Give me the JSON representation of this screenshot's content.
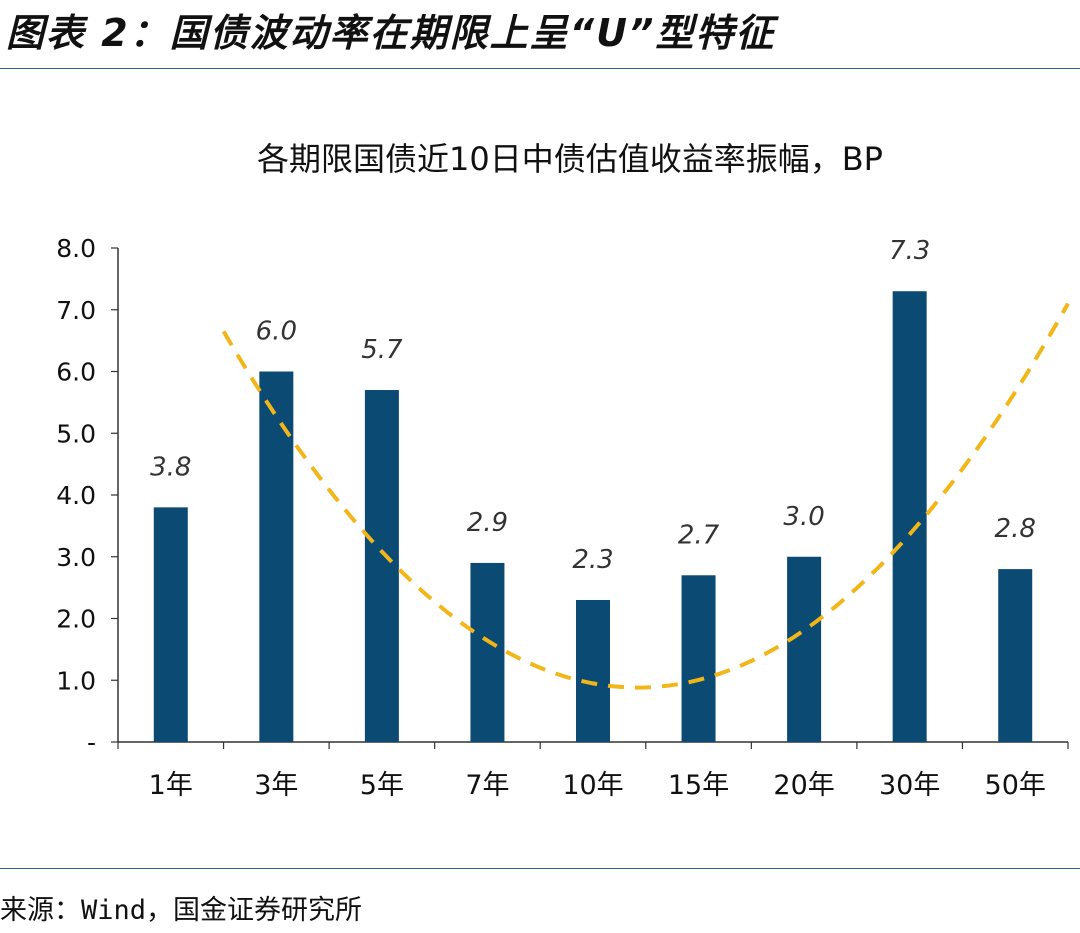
{
  "figure": {
    "title": "图表 2：国债波动率在期限上呈“U”型特征",
    "source": "来源：Wind，国金证券研究所"
  },
  "chart_data": {
    "type": "bar",
    "title": "各期限国债近10日中债估值收益率振幅，BP",
    "categories": [
      "1年",
      "3年",
      "5年",
      "7年",
      "10年",
      "15年",
      "20年",
      "30年",
      "50年"
    ],
    "values": [
      3.8,
      6.0,
      5.7,
      2.9,
      2.3,
      2.7,
      3.0,
      7.3,
      2.8
    ],
    "data_labels": [
      "3.8",
      "6.0",
      "5.7",
      "2.9",
      "2.3",
      "2.7",
      "3.0",
      "7.3",
      "2.8"
    ],
    "ylim": [
      0,
      8
    ],
    "yticks": [
      {
        "value": 0,
        "label": "-"
      },
      {
        "value": 1,
        "label": "1.0"
      },
      {
        "value": 2,
        "label": "2.0"
      },
      {
        "value": 3,
        "label": "3.0"
      },
      {
        "value": 4,
        "label": "4.0"
      },
      {
        "value": 5,
        "label": "5.0"
      },
      {
        "value": 6,
        "label": "6.0"
      },
      {
        "value": 7,
        "label": "7.0"
      },
      {
        "value": 8,
        "label": "8.0"
      }
    ],
    "trend": {
      "style": "dashed",
      "shape": "U",
      "x": [
        1.5,
        5.2,
        9.5
      ],
      "y": [
        6.65,
        0.9,
        7.1
      ]
    },
    "grid": false,
    "colors": {
      "bar": "#0b4a73",
      "trend": "#f2b619",
      "axis": "#333333"
    }
  }
}
